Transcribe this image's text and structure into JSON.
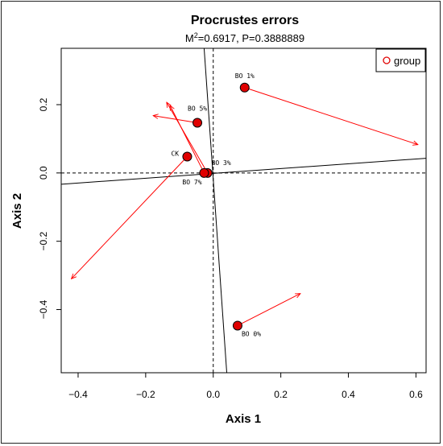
{
  "chart_data": {
    "type": "scatter",
    "title": "Procrustes errors",
    "subtitle_prefix": "M",
    "subtitle_sup": "2",
    "subtitle_rest": "=0.6917, P=0.3888889",
    "xlabel": "Axis 1",
    "ylabel": "Axis 2",
    "xlim": [
      -0.45,
      0.63
    ],
    "ylim": [
      -0.585,
      0.365
    ],
    "xticks": [
      -0.4,
      -0.2,
      0.0,
      0.2,
      0.4,
      0.6
    ],
    "xtick_labels": [
      "−0.4",
      "−0.2",
      "0.0",
      "0.2",
      "0.4",
      "0.6"
    ],
    "yticks": [
      -0.4,
      -0.2,
      0.0,
      0.2
    ],
    "ytick_labels": [
      "−0.4",
      "−0.2",
      "0.0",
      "0.2"
    ],
    "legend": {
      "position": "top-right",
      "label": "group"
    },
    "point_color": "#e00000",
    "arrow_color": "#ff0000",
    "points": [
      {
        "label": "BO 1%",
        "x": 0.093,
        "y": 0.25,
        "tx": 0.606,
        "ty": 0.083
      },
      {
        "label": "BO 5%",
        "x": -0.047,
        "y": 0.147,
        "tx": -0.178,
        "ty": 0.168
      },
      {
        "label": "CK",
        "x": -0.077,
        "y": 0.048,
        "tx": -0.42,
        "ty": -0.31
      },
      {
        "label": "BO 3%",
        "x": -0.017,
        "y": 0.0,
        "tx": -0.138,
        "ty": 0.207
      },
      {
        "label": "BO 7%",
        "x": -0.027,
        "y": 0.0,
        "tx": -0.128,
        "ty": 0.198
      },
      {
        "label": "BO 0%",
        "x": 0.072,
        "y": -0.447,
        "tx": 0.258,
        "ty": -0.353
      }
    ],
    "rotation_axes": [
      {
        "x1": -0.45,
        "y1": -0.033,
        "x2": 0.63,
        "y2": 0.043
      },
      {
        "x1": -0.027,
        "y1": 0.365,
        "x2": 0.04,
        "y2": -0.585
      }
    ]
  }
}
